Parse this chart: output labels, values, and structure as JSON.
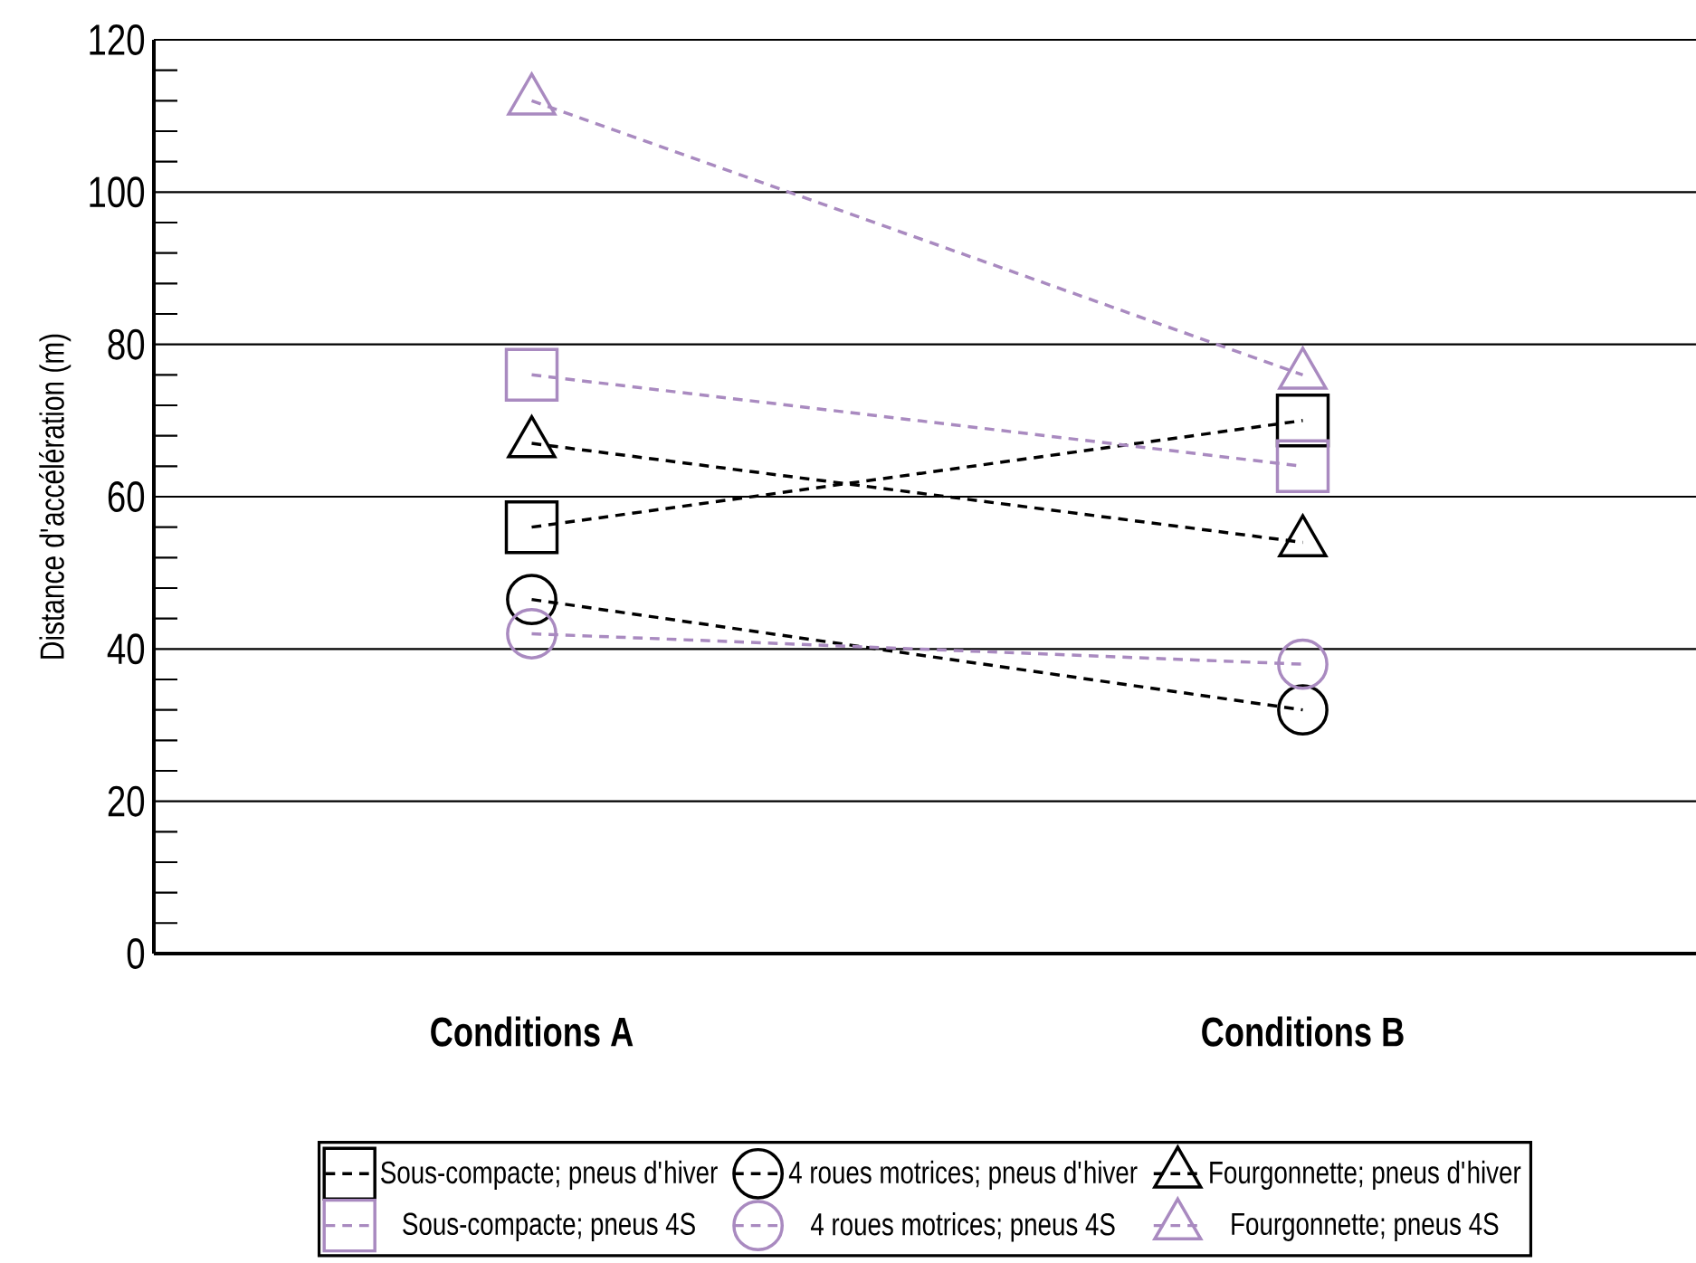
{
  "chart_data": {
    "type": "line",
    "ylabel": "Distance d'accélération (m)",
    "categories": [
      "Conditions A",
      "Conditions B"
    ],
    "ylim": [
      0,
      120
    ],
    "yticks": [
      0,
      20,
      40,
      60,
      80,
      100,
      120
    ],
    "grid": "y",
    "legend": "bottom",
    "line_style": "dashed",
    "series": [
      {
        "name": "Sous-compacte; pneus d'hiver",
        "color": "#000000",
        "marker": "square",
        "values": [
          56,
          70
        ]
      },
      {
        "name": "4 roues motrices; pneus d'hiver",
        "color": "#000000",
        "marker": "circle",
        "values": [
          46.5,
          32
        ]
      },
      {
        "name": "Fourgonnette; pneus d'hiver",
        "color": "#000000",
        "marker": "triangle",
        "values": [
          67,
          54
        ]
      },
      {
        "name": "Sous-compacte; pneus 4S",
        "color": "#a98ac0",
        "marker": "square",
        "values": [
          76,
          64
        ]
      },
      {
        "name": "4 roues motrices; pneus 4S",
        "color": "#a98ac0",
        "marker": "circle",
        "values": [
          42,
          38
        ]
      },
      {
        "name": "Fourgonnette; pneus 4S",
        "color": "#a98ac0",
        "marker": "triangle",
        "values": [
          112,
          76
        ]
      }
    ]
  }
}
